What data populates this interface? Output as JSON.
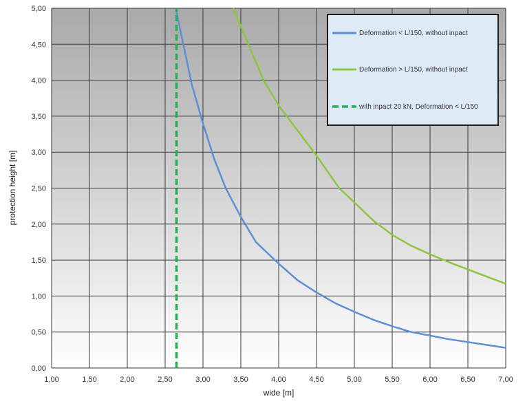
{
  "chart_data": {
    "type": "line",
    "xlabel": "wide [m]",
    "ylabel": "protection height [m]",
    "xlim": [
      1.0,
      7.0
    ],
    "ylim": [
      0.0,
      5.0
    ],
    "xticks": [
      "1,00",
      "1,50",
      "2,00",
      "2,50",
      "3,00",
      "3,50",
      "4,00",
      "4,50",
      "5,00",
      "5,50",
      "6,00",
      "6,50",
      "7,00"
    ],
    "yticks": [
      "0,00",
      "0,50",
      "1,00",
      "1,50",
      "2,00",
      "2,50",
      "3,00",
      "3,50",
      "4,00",
      "4,50",
      "5,00"
    ],
    "grid": true,
    "legend_position": "top-right",
    "series": [
      {
        "name": "Deformation < L/150, without inpact",
        "color": "#5b8fd6",
        "style": "solid",
        "x": [
          2.65,
          2.75,
          2.85,
          3.0,
          3.15,
          3.3,
          3.5,
          3.7,
          4.0,
          4.25,
          4.5,
          4.75,
          5.0,
          5.25,
          5.5,
          5.75,
          6.0,
          6.25,
          6.5,
          6.75,
          7.0
        ],
        "y": [
          4.95,
          4.45,
          3.95,
          3.4,
          2.9,
          2.5,
          2.1,
          1.75,
          1.45,
          1.22,
          1.05,
          0.9,
          0.78,
          0.67,
          0.58,
          0.5,
          0.45,
          0.4,
          0.36,
          0.32,
          0.28
        ]
      },
      {
        "name": "Deformation > L/150, without inpact",
        "color": "#8cc63f",
        "style": "solid",
        "x": [
          3.4,
          3.6,
          3.8,
          4.0,
          4.25,
          4.5,
          4.8,
          5.0,
          5.25,
          5.5,
          5.75,
          6.0,
          6.25,
          6.5,
          6.75,
          7.0
        ],
        "y": [
          5.0,
          4.5,
          4.0,
          3.65,
          3.3,
          2.95,
          2.5,
          2.3,
          2.05,
          1.85,
          1.7,
          1.58,
          1.47,
          1.37,
          1.27,
          1.17
        ]
      },
      {
        "name": "with inpact 20 kN, Deformation < L/150",
        "color": "#1fb050",
        "style": "dashed",
        "x": [
          2.65,
          2.65
        ],
        "y": [
          0.0,
          5.0
        ]
      }
    ]
  }
}
